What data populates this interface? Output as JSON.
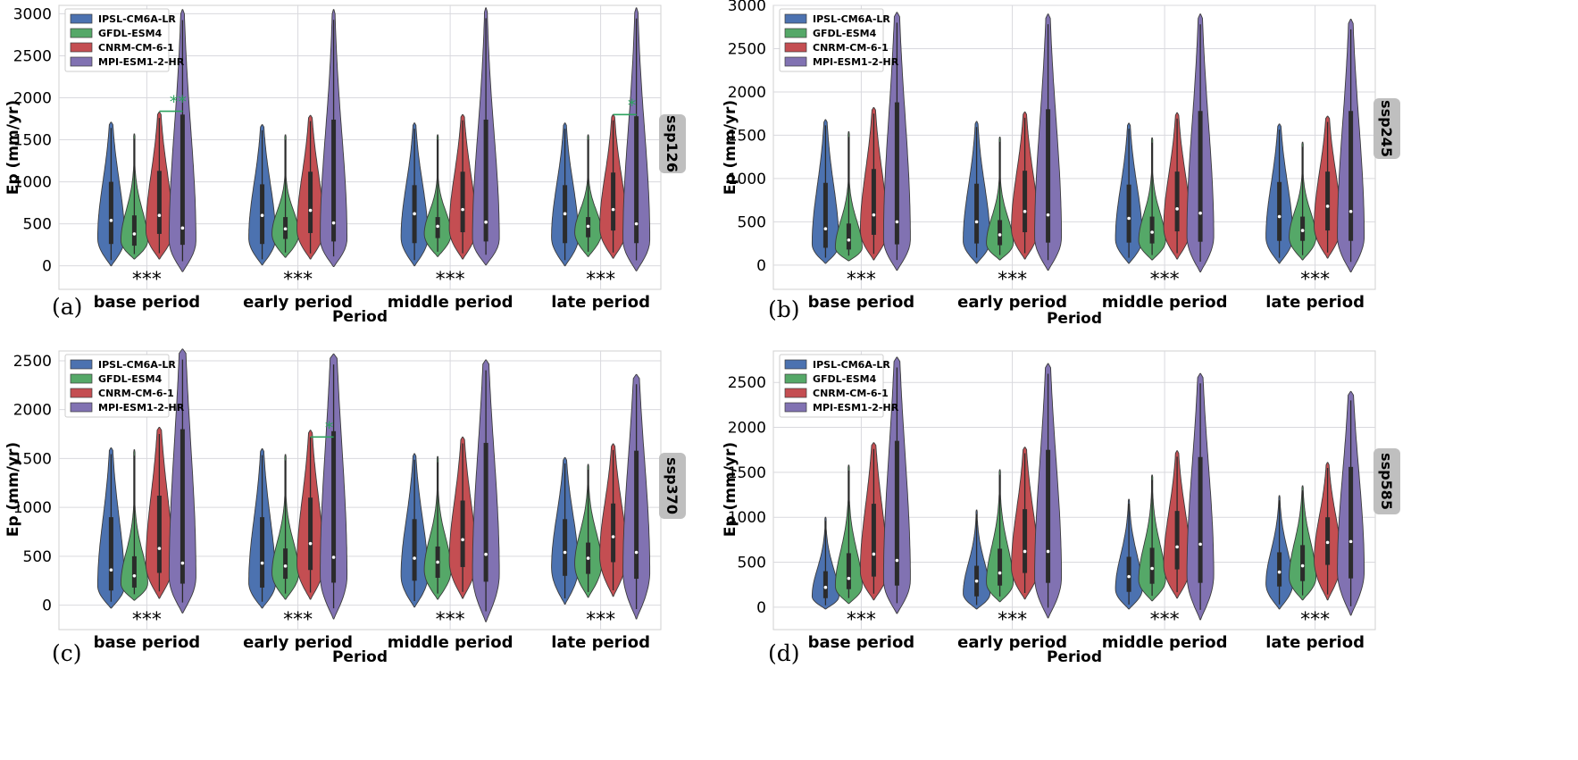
{
  "figure": {
    "colors": {
      "IPSL-CM6A-LR": "#4c72b0",
      "GFDL-ESM4": "#55a868",
      "CNRM-CM-6-1": "#c44e52",
      "MPI-ESM1-2-HR": "#8172b2",
      "grid": "#d9d9de",
      "strip": "#bfbfbf",
      "pair_sig": "#2ca25f"
    }
  },
  "chart_data": [
    {
      "type": "violin",
      "panel_label": "(a)",
      "scenario": "ssp126",
      "ylabel": "Ep (mm/yr)",
      "xlabel": "Period",
      "categories": [
        "base period",
        "early period",
        "middle period",
        "late period"
      ],
      "ylim": [
        -280,
        3100
      ],
      "yticks": [
        0,
        500,
        1000,
        1500,
        2000,
        2500,
        3000
      ],
      "legend": [
        "IPSL-CM6A-LR",
        "GFDL-ESM4",
        "CNRM-CM-6-1",
        "MPI-ESM1-2-HR"
      ],
      "legend_position": "upper-left",
      "grid": true,
      "significance": [
        "***",
        "***",
        "***",
        "***"
      ],
      "pair_significance": [
        {
          "period": "base period",
          "between": [
            "CNRM-CM-6-1",
            "MPI-ESM1-2-HR"
          ],
          "label": "**",
          "y": 1840
        },
        {
          "period": "late period",
          "between": [
            "CNRM-CM-6-1",
            "MPI-ESM1-2-HR"
          ],
          "label": "*",
          "y": 1800
        }
      ],
      "series": [
        {
          "name": "IPSL-CM6A-LR",
          "min": [
            0,
            10,
            0,
            0
          ],
          "q1": [
            260,
            260,
            270,
            270
          ],
          "median": [
            540,
            600,
            620,
            620
          ],
          "q3": [
            1000,
            970,
            960,
            960
          ],
          "max": [
            1710,
            1680,
            1700,
            1700
          ],
          "mode": [
            330,
            330,
            340,
            340
          ]
        },
        {
          "name": "GFDL-ESM4",
          "min": [
            80,
            100,
            110,
            110
          ],
          "q1": [
            240,
            320,
            330,
            340
          ],
          "median": [
            380,
            440,
            470,
            470
          ],
          "q3": [
            600,
            580,
            580,
            580
          ],
          "max": [
            1570,
            1560,
            1560,
            1560
          ],
          "mode": [
            300,
            380,
            380,
            400
          ]
        },
        {
          "name": "CNRM-CM-6-1",
          "min": [
            80,
            80,
            80,
            90
          ],
          "q1": [
            380,
            390,
            400,
            420
          ],
          "median": [
            600,
            660,
            670,
            670
          ],
          "q3": [
            1130,
            1120,
            1120,
            1110
          ],
          "max": [
            1830,
            1790,
            1800,
            1800
          ],
          "mode": [
            420,
            430,
            440,
            450
          ]
        },
        {
          "name": "MPI-ESM1-2-HR",
          "min": [
            -70,
            -10,
            10,
            -60
          ],
          "q1": [
            250,
            290,
            290,
            270
          ],
          "median": [
            450,
            510,
            520,
            500
          ],
          "q3": [
            1800,
            1740,
            1740,
            1780
          ],
          "max": [
            3050,
            3050,
            3070,
            3070
          ],
          "mode": [
            300,
            320,
            320,
            310
          ]
        }
      ]
    },
    {
      "type": "violin",
      "panel_label": "(b)",
      "scenario": "ssp245",
      "ylabel": "Ep (mm/yr)",
      "xlabel": "Period",
      "categories": [
        "base period",
        "early period",
        "middle period",
        "late period"
      ],
      "ylim": [
        -280,
        3000
      ],
      "yticks": [
        0,
        500,
        1000,
        1500,
        2000,
        2500,
        3000
      ],
      "legend": [
        "IPSL-CM6A-LR",
        "GFDL-ESM4",
        "CNRM-CM-6-1",
        "MPI-ESM1-2-HR"
      ],
      "legend_position": "upper-left",
      "grid": true,
      "significance": [
        "***",
        "***",
        "***",
        "***"
      ],
      "pair_significance": [],
      "series": [
        {
          "name": "IPSL-CM6A-LR",
          "min": [
            20,
            20,
            20,
            20
          ],
          "q1": [
            200,
            250,
            260,
            280
          ],
          "median": [
            420,
            500,
            540,
            560
          ],
          "q3": [
            950,
            940,
            930,
            960
          ],
          "max": [
            1680,
            1660,
            1640,
            1630
          ],
          "mode": [
            240,
            280,
            300,
            320
          ]
        },
        {
          "name": "GFDL-ESM4",
          "min": [
            50,
            60,
            60,
            60
          ],
          "q1": [
            180,
            230,
            250,
            280
          ],
          "median": [
            290,
            350,
            380,
            400
          ],
          "q3": [
            480,
            520,
            560,
            560
          ],
          "max": [
            1540,
            1480,
            1470,
            1420
          ],
          "mode": [
            200,
            250,
            280,
            320
          ]
        },
        {
          "name": "CNRM-CM-6-1",
          "min": [
            60,
            70,
            70,
            80
          ],
          "q1": [
            350,
            380,
            390,
            400
          ],
          "median": [
            580,
            620,
            650,
            680
          ],
          "q3": [
            1110,
            1090,
            1080,
            1080
          ],
          "max": [
            1820,
            1770,
            1760,
            1720
          ],
          "mode": [
            400,
            420,
            430,
            450
          ]
        },
        {
          "name": "MPI-ESM1-2-HR",
          "min": [
            -60,
            -60,
            -80,
            -80
          ],
          "q1": [
            240,
            260,
            270,
            280
          ],
          "median": [
            500,
            580,
            600,
            620
          ],
          "q3": [
            1880,
            1800,
            1780,
            1780
          ],
          "max": [
            2920,
            2900,
            2900,
            2840
          ],
          "mode": [
            300,
            320,
            330,
            330
          ]
        }
      ]
    },
    {
      "type": "violin",
      "panel_label": "(c)",
      "scenario": "ssp370",
      "ylabel": "Ep (mm/yr)",
      "xlabel": "Period",
      "categories": [
        "base period",
        "early period",
        "middle period",
        "late period"
      ],
      "ylim": [
        -250,
        2600
      ],
      "yticks": [
        0,
        500,
        1000,
        1500,
        2000,
        2500
      ],
      "legend": [
        "IPSL-CM6A-LR",
        "GFDL-ESM4",
        "CNRM-CM-6-1",
        "MPI-ESM1-2-HR"
      ],
      "legend_position": "upper-left",
      "grid": true,
      "significance": [
        "***",
        "***",
        "***",
        "***"
      ],
      "pair_significance": [
        {
          "period": "early period",
          "between": [
            "CNRM-CM-6-1",
            "MPI-ESM1-2-HR"
          ],
          "label": "*",
          "y": 1720
        }
      ],
      "series": [
        {
          "name": "IPSL-CM6A-LR",
          "min": [
            -30,
            -30,
            -20,
            10
          ],
          "q1": [
            150,
            180,
            250,
            300
          ],
          "median": [
            360,
            430,
            480,
            540
          ],
          "q3": [
            900,
            900,
            880,
            880
          ],
          "max": [
            1610,
            1600,
            1550,
            1510
          ],
          "mode": [
            200,
            230,
            300,
            380
          ]
        },
        {
          "name": "GFDL-ESM4",
          "min": [
            50,
            60,
            60,
            80
          ],
          "q1": [
            180,
            270,
            280,
            320
          ],
          "median": [
            300,
            400,
            440,
            480
          ],
          "q3": [
            500,
            580,
            600,
            640
          ],
          "max": [
            1590,
            1540,
            1520,
            1440
          ],
          "mode": [
            220,
            330,
            360,
            420
          ]
        },
        {
          "name": "CNRM-CM-6-1",
          "min": [
            70,
            60,
            70,
            90
          ],
          "q1": [
            330,
            360,
            390,
            440
          ],
          "median": [
            580,
            630,
            670,
            700
          ],
          "q3": [
            1120,
            1100,
            1070,
            1040
          ],
          "max": [
            1820,
            1790,
            1720,
            1650
          ],
          "mode": [
            420,
            420,
            450,
            500
          ]
        },
        {
          "name": "MPI-ESM1-2-HR",
          "min": [
            -80,
            -140,
            -170,
            -140
          ],
          "q1": [
            220,
            230,
            240,
            270
          ],
          "median": [
            430,
            490,
            520,
            540
          ],
          "q3": [
            1800,
            1780,
            1660,
            1580
          ],
          "max": [
            2620,
            2570,
            2510,
            2360
          ],
          "mode": [
            290,
            300,
            320,
            340
          ]
        }
      ]
    },
    {
      "type": "violin",
      "panel_label": "(d)",
      "scenario": "ssp585",
      "ylabel": "Ep (mm/yr)",
      "xlabel": "Period",
      "categories": [
        "base period",
        "early period",
        "middle period",
        "late period"
      ],
      "ylim": [
        -250,
        2850
      ],
      "yticks": [
        0,
        500,
        1000,
        1500,
        2000,
        2500
      ],
      "legend": [
        "IPSL-CM6A-LR",
        "GFDL-ESM4",
        "CNRM-CM-6-1",
        "MPI-ESM1-2-HR"
      ],
      "legend_position": "upper-left",
      "grid": true,
      "significance": [
        "***",
        "***",
        "***",
        "***"
      ],
      "pair_significance": [],
      "series": [
        {
          "name": "IPSL-CM6A-LR",
          "min": [
            -20,
            -20,
            -20,
            -20
          ],
          "q1": [
            100,
            120,
            170,
            230
          ],
          "median": [
            220,
            290,
            340,
            390
          ],
          "q3": [
            400,
            460,
            560,
            610
          ],
          "max": [
            1000,
            1080,
            1200,
            1240
          ],
          "mode": [
            120,
            150,
            200,
            260
          ]
        },
        {
          "name": "GFDL-ESM4",
          "min": [
            40,
            60,
            70,
            80
          ],
          "q1": [
            200,
            240,
            260,
            290
          ],
          "median": [
            320,
            380,
            430,
            460
          ],
          "q3": [
            600,
            650,
            660,
            690
          ],
          "max": [
            1580,
            1530,
            1470,
            1350
          ],
          "mode": [
            230,
            270,
            300,
            330
          ]
        },
        {
          "name": "CNRM-CM-6-1",
          "min": [
            80,
            90,
            100,
            80
          ],
          "q1": [
            340,
            380,
            420,
            470
          ],
          "median": [
            590,
            620,
            670,
            720
          ],
          "q3": [
            1150,
            1090,
            1070,
            1000
          ],
          "max": [
            1830,
            1780,
            1740,
            1610
          ],
          "mode": [
            400,
            440,
            470,
            520
          ]
        },
        {
          "name": "MPI-ESM1-2-HR",
          "min": [
            -70,
            -120,
            -140,
            -90
          ],
          "q1": [
            240,
            270,
            270,
            320
          ],
          "median": [
            520,
            620,
            700,
            730
          ],
          "q3": [
            1850,
            1750,
            1670,
            1560
          ],
          "max": [
            2780,
            2710,
            2600,
            2400
          ],
          "mode": [
            300,
            330,
            360,
            400
          ]
        }
      ]
    }
  ]
}
